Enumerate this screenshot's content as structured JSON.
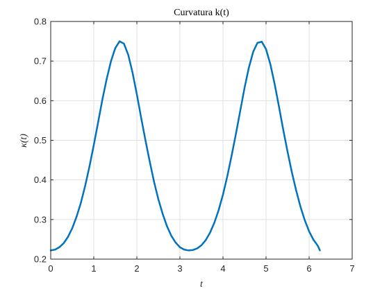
{
  "chart_data": {
    "type": "line",
    "title": "Curvatura k(t)",
    "xlabel": "t",
    "ylabel": "κ(t)",
    "xlim": [
      0,
      7
    ],
    "ylim": [
      0.2,
      0.8
    ],
    "xticks": [
      "0",
      "1",
      "2",
      "3",
      "4",
      "5",
      "6",
      "7"
    ],
    "yticks": [
      "0.2",
      "0.3",
      "0.4",
      "0.5",
      "0.6",
      "0.7",
      "0.8"
    ],
    "grid": true,
    "line_color": "#0072BD",
    "series": [
      {
        "x": [
          0,
          0.1,
          0.2,
          0.3,
          0.4,
          0.5,
          0.6,
          0.7,
          0.8,
          0.9,
          1.0,
          1.1,
          1.2,
          1.3,
          1.4,
          1.5,
          1.6,
          1.7,
          1.8,
          1.9,
          2.0,
          2.1,
          2.2,
          2.3,
          2.4,
          2.5,
          2.6,
          2.7,
          2.8,
          2.9,
          3.0,
          3.1,
          3.2,
          3.3,
          3.4,
          3.5,
          3.6,
          3.7,
          3.8,
          3.9,
          4.0,
          4.1,
          4.2,
          4.3,
          4.4,
          4.5,
          4.6,
          4.7,
          4.8,
          4.9,
          5.0,
          5.1,
          5.2,
          5.3,
          5.4,
          5.5,
          5.6,
          5.7,
          5.8,
          5.9,
          6.0,
          6.1,
          6.2,
          6.25
        ],
        "y": [
          0.222,
          0.224,
          0.23,
          0.24,
          0.256,
          0.278,
          0.307,
          0.342,
          0.385,
          0.434,
          0.488,
          0.545,
          0.603,
          0.655,
          0.7,
          0.733,
          0.75,
          0.744,
          0.716,
          0.671,
          0.616,
          0.557,
          0.5,
          0.446,
          0.395,
          0.351,
          0.314,
          0.283,
          0.259,
          0.242,
          0.23,
          0.224,
          0.222,
          0.223,
          0.227,
          0.235,
          0.248,
          0.267,
          0.292,
          0.324,
          0.363,
          0.409,
          0.461,
          0.516,
          0.574,
          0.632,
          0.683,
          0.723,
          0.746,
          0.749,
          0.73,
          0.692,
          0.642,
          0.585,
          0.526,
          0.471,
          0.419,
          0.373,
          0.332,
          0.298,
          0.27,
          0.249,
          0.234,
          0.222
        ]
      }
    ]
  }
}
